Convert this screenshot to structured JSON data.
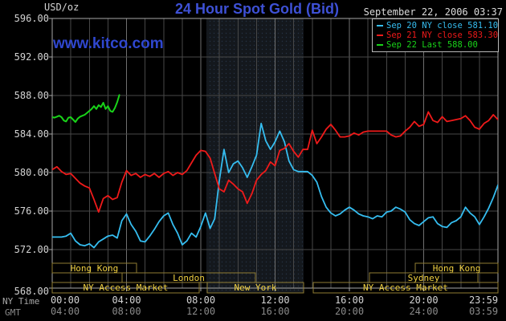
{
  "header": {
    "units_label": "USD/oz",
    "title": "24 Hour Spot Gold (Bid)",
    "datetime": "September 22, 2006 03:37",
    "watermark": "www.kitco.com"
  },
  "legend": {
    "items": [
      {
        "key": "sep20",
        "label": "Sep 20 NY close 581.10",
        "color": "#35bdf0"
      },
      {
        "key": "sep21",
        "label": "Sep 21 NY close 583.30",
        "color": "#ef1a1a"
      },
      {
        "key": "sep22",
        "label": "Sep 22 Last 588.00",
        "color": "#19d319"
      }
    ]
  },
  "colors": {
    "background": "#000000",
    "frame": "#a8a8a8",
    "grid": "#474747",
    "grid_major": "#6f6f6f",
    "band": "#14181d",
    "band_dot": "#263244",
    "axis_text": "#d4d4d4",
    "gmt_text": "#8a8a8a",
    "label_dim": "#a8a8a8",
    "session_border": "#8f7d32",
    "session_text": "#f0d042",
    "title": "#3e51d6",
    "watermark": "#2f47cf",
    "datetime": "#dcdcdc"
  },
  "footer": {
    "ny_time_label": "NY Time",
    "gmt_label": "GMT"
  },
  "chart_data": {
    "type": "line",
    "title": "24 Hour Spot Gold (Bid)",
    "ylabel": "USD/oz",
    "y_axis": {
      "range": [
        568,
        596
      ],
      "tick_step": 4,
      "tick_labels": [
        "568.00",
        "572.00",
        "576.00",
        "580.00",
        "584.00",
        "588.00",
        "592.00",
        "596.00"
      ]
    },
    "x_axis": {
      "range_hours": [
        0,
        24
      ],
      "grid_step_hours": 1,
      "ticks": [
        {
          "h": 0,
          "ny": "00:00",
          "gmt": "04:00"
        },
        {
          "h": 4,
          "ny": "04:00",
          "gmt": "08:00"
        },
        {
          "h": 8,
          "ny": "08:00",
          "gmt": "12:00"
        },
        {
          "h": 12,
          "ny": "12:00",
          "gmt": "16:00"
        },
        {
          "h": 16,
          "ny": "16:00",
          "gmt": "20:00"
        },
        {
          "h": 20,
          "ny": "20:00",
          "gmt": "24:00"
        },
        {
          "h": 24,
          "ny": "23:59",
          "gmt": "03:59"
        }
      ]
    },
    "shaded_region": {
      "start_h": 8.3,
      "end_h": 13.53
    },
    "sessions": [
      {
        "row": 0,
        "label": "Hong Kong",
        "start_h": 0,
        "end_h": 4.54
      },
      {
        "row": 0,
        "label": "Hong Kong",
        "start_h": 19.55,
        "end_h": 24
      },
      {
        "row": 1,
        "label": "London",
        "start_h": 3.76,
        "end_h": 10.94
      },
      {
        "row": 1,
        "label": "Sydney",
        "start_h": 17.08,
        "end_h": 22.92
      },
      {
        "row": 2,
        "label": "NY Access Market",
        "start_h": 0,
        "end_h": 7.91
      },
      {
        "row": 2,
        "label": "New York",
        "start_h": 8.35,
        "end_h": 13.53
      },
      {
        "row": 2,
        "label": "NY Access Market",
        "start_h": 14.05,
        "end_h": 24
      }
    ],
    "series": [
      {
        "key": "sep20",
        "name": "Sep 20 NY close 581.10",
        "color": "#35bdf0",
        "close_value": 581.1,
        "x_start": 0,
        "x_step_hours": 0.25,
        "values": [
          573.3,
          573.3,
          573.3,
          573.4,
          573.7,
          572.9,
          572.5,
          572.4,
          572.6,
          572.2,
          572.8,
          573.1,
          573.4,
          573.5,
          573.2,
          575.0,
          575.7,
          574.6,
          573.9,
          572.9,
          572.8,
          573.4,
          574.1,
          574.9,
          575.5,
          575.8,
          574.6,
          573.7,
          572.5,
          572.9,
          573.7,
          573.3,
          574.4,
          575.8,
          574.2,
          575.2,
          579.2,
          582.4,
          580.0,
          580.9,
          581.2,
          580.5,
          579.5,
          580.6,
          581.8,
          585.1,
          583.3,
          582.4,
          583.2,
          584.3,
          583.2,
          581.2,
          580.3,
          580.1,
          580.1,
          580.1,
          579.7,
          579.0,
          577.5,
          576.4,
          575.8,
          575.5,
          575.7,
          576.1,
          576.4,
          576.1,
          575.7,
          575.5,
          575.4,
          575.2,
          575.5,
          575.4,
          575.9,
          576.0,
          576.4,
          576.2,
          575.9,
          575.1,
          574.7,
          574.5,
          574.9,
          575.3,
          575.4,
          574.7,
          574.4,
          574.3,
          574.8,
          575.0,
          575.4,
          576.4,
          575.8,
          575.4,
          574.6,
          575.4,
          576.3,
          577.4,
          578.7
        ]
      },
      {
        "key": "sep21",
        "name": "Sep 21 NY close 583.30",
        "color": "#ef1a1a",
        "close_value": 583.3,
        "x_start": 0,
        "x_step_hours": 0.25,
        "values": [
          580.3,
          580.6,
          580.1,
          579.8,
          579.9,
          579.4,
          578.9,
          578.6,
          578.4,
          577.2,
          575.9,
          577.3,
          577.6,
          577.2,
          577.4,
          579.0,
          580.2,
          579.7,
          579.9,
          579.5,
          579.8,
          579.6,
          579.9,
          579.5,
          579.9,
          580.1,
          579.7,
          580.0,
          579.8,
          580.2,
          581.0,
          581.8,
          582.3,
          582.2,
          581.5,
          579.9,
          578.3,
          578.0,
          579.2,
          578.8,
          578.3,
          578.0,
          576.8,
          577.8,
          579.2,
          579.8,
          580.2,
          581.1,
          580.7,
          582.3,
          582.5,
          583.0,
          582.2,
          581.6,
          582.4,
          582.4,
          584.4,
          583.0,
          583.7,
          584.5,
          585.0,
          584.4,
          583.7,
          583.7,
          583.8,
          584.1,
          583.9,
          584.2,
          584.3,
          584.3,
          584.3,
          584.3,
          584.3,
          583.9,
          583.7,
          583.8,
          584.3,
          584.7,
          585.3,
          584.8,
          585.0,
          586.3,
          585.4,
          585.2,
          585.8,
          585.3,
          585.4,
          585.5,
          585.6,
          585.9,
          585.4,
          584.7,
          584.5,
          585.1,
          585.4,
          586.0,
          585.5
        ]
      },
      {
        "key": "sep22",
        "name": "Sep 22 Last 588.00",
        "color": "#19d319",
        "last_value": 588.0,
        "x": [
          0,
          0.125,
          0.25,
          0.375,
          0.5,
          0.625,
          0.75,
          0.875,
          1,
          1.125,
          1.25,
          1.375,
          1.5,
          1.625,
          1.75,
          1.875,
          2,
          2.125,
          2.25,
          2.375,
          2.5,
          2.625,
          2.75,
          2.875,
          3,
          3.125,
          3.25,
          3.375,
          3.5,
          3.617
        ],
        "values": [
          585.75,
          585.7,
          585.8,
          585.9,
          585.75,
          585.4,
          585.3,
          585.7,
          585.75,
          585.5,
          585.25,
          585.6,
          585.8,
          585.9,
          586.0,
          586.2,
          586.4,
          586.6,
          586.9,
          586.6,
          587.0,
          586.8,
          587.25,
          586.6,
          586.9,
          586.4,
          586.3,
          586.7,
          587.3,
          588.05
        ]
      }
    ]
  }
}
